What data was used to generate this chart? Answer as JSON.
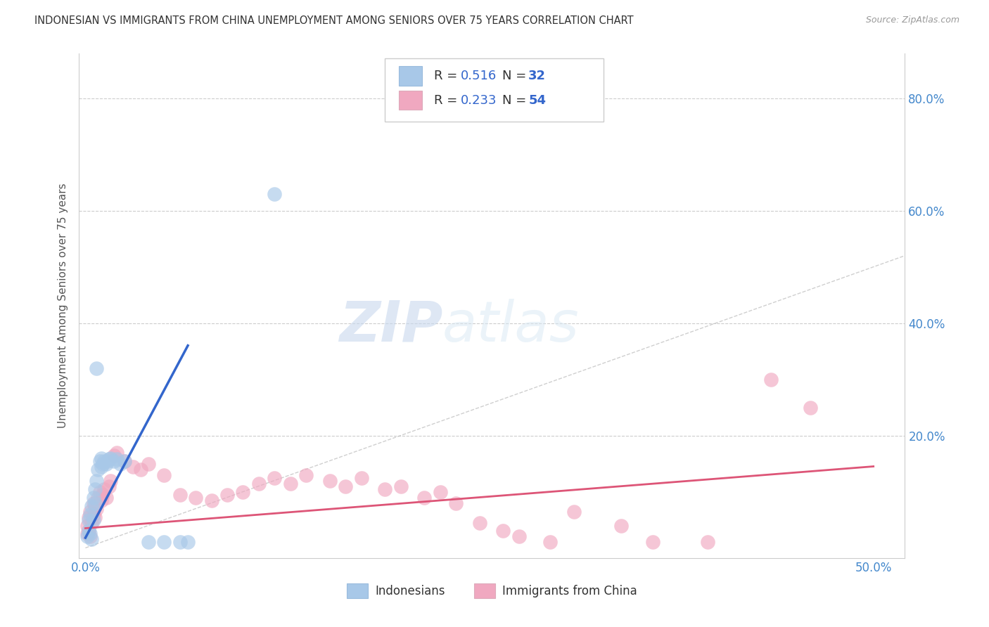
{
  "title": "INDONESIAN VS IMMIGRANTS FROM CHINA UNEMPLOYMENT AMONG SENIORS OVER 75 YEARS CORRELATION CHART",
  "source": "Source: ZipAtlas.com",
  "ylabel": "Unemployment Among Seniors over 75 years",
  "xlim": [
    -0.004,
    0.52
  ],
  "ylim": [
    -0.018,
    0.88
  ],
  "xticks": [
    0.0,
    0.1,
    0.2,
    0.3,
    0.4,
    0.5
  ],
  "yticks": [
    0.0,
    0.2,
    0.4,
    0.6,
    0.8
  ],
  "color_indonesian": "#A8C8E8",
  "color_china": "#F0A8C0",
  "color_line_indonesian": "#3366CC",
  "color_line_china": "#DD5577",
  "color_diag": "#BBBBBB",
  "watermark_zip": "ZIP",
  "watermark_atlas": "atlas",
  "r1": "0.516",
  "n1": "32",
  "r2": "0.233",
  "n2": "54",
  "legend_text_color": "#3366CC",
  "legend_label_color": "#333333",
  "indo_x": [
    0.001,
    0.002,
    0.002,
    0.003,
    0.003,
    0.004,
    0.004,
    0.005,
    0.005,
    0.006,
    0.006,
    0.007,
    0.008,
    0.009,
    0.01,
    0.01,
    0.011,
    0.012,
    0.013,
    0.014,
    0.015,
    0.016,
    0.018,
    0.02,
    0.022,
    0.025,
    0.04,
    0.05,
    0.06,
    0.065,
    0.007,
    0.12
  ],
  "indo_y": [
    0.02,
    0.03,
    0.05,
    0.025,
    0.06,
    0.015,
    0.075,
    0.05,
    0.09,
    0.08,
    0.105,
    0.12,
    0.14,
    0.155,
    0.145,
    0.16,
    0.15,
    0.155,
    0.15,
    0.155,
    0.158,
    0.16,
    0.155,
    0.158,
    0.15,
    0.155,
    0.01,
    0.01,
    0.01,
    0.01,
    0.32,
    0.63
  ],
  "china_x": [
    0.001,
    0.001,
    0.002,
    0.002,
    0.003,
    0.003,
    0.004,
    0.005,
    0.005,
    0.006,
    0.006,
    0.007,
    0.008,
    0.009,
    0.01,
    0.011,
    0.012,
    0.013,
    0.015,
    0.016,
    0.018,
    0.02,
    0.025,
    0.03,
    0.035,
    0.04,
    0.05,
    0.06,
    0.07,
    0.08,
    0.09,
    0.1,
    0.11,
    0.12,
    0.13,
    0.14,
    0.155,
    0.165,
    0.175,
    0.19,
    0.2,
    0.215,
    0.225,
    0.235,
    0.25,
    0.265,
    0.275,
    0.295,
    0.31,
    0.34,
    0.36,
    0.395,
    0.435,
    0.46
  ],
  "china_y": [
    0.025,
    0.04,
    0.03,
    0.055,
    0.02,
    0.065,
    0.045,
    0.06,
    0.08,
    0.055,
    0.075,
    0.07,
    0.09,
    0.1,
    0.085,
    0.095,
    0.105,
    0.09,
    0.11,
    0.12,
    0.165,
    0.17,
    0.155,
    0.145,
    0.14,
    0.15,
    0.13,
    0.095,
    0.09,
    0.085,
    0.095,
    0.1,
    0.115,
    0.125,
    0.115,
    0.13,
    0.12,
    0.11,
    0.125,
    0.105,
    0.11,
    0.09,
    0.1,
    0.08,
    0.045,
    0.03,
    0.02,
    0.01,
    0.065,
    0.04,
    0.01,
    0.01,
    0.3,
    0.25
  ],
  "indo_line_x": [
    0.0,
    0.065
  ],
  "indo_line_y": [
    0.018,
    0.36
  ],
  "china_line_x": [
    0.0,
    0.5
  ],
  "china_line_y": [
    0.035,
    0.145
  ]
}
